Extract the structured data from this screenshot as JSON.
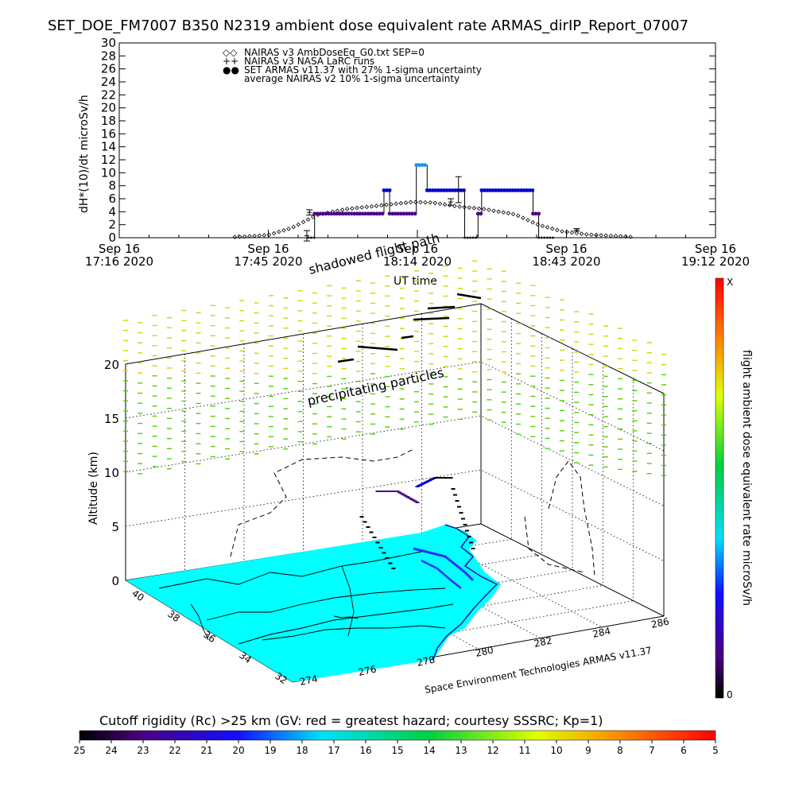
{
  "title": "SET_DOE_FM7007   B350    N2319  ambient dose equivalent rate ARMAS_dirIP_Report_07007",
  "chart_data": [
    {
      "type": "scatter",
      "ylabel": "dH*(10)/dt microSv/h",
      "xlabel": "UT time",
      "ylim": [
        0,
        30
      ],
      "yticks": [
        "0",
        "2",
        "4",
        "6",
        "8",
        "10",
        "12",
        "14",
        "16",
        "18",
        "20",
        "22",
        "24",
        "26",
        "28",
        "30"
      ],
      "xticks": [
        {
          "top": "Sep 16",
          "bottom": "17:16 2020"
        },
        {
          "top": "Sep 16",
          "bottom": "17:45 2020"
        },
        {
          "top": "Sep 16",
          "bottom": "18:14 2020"
        },
        {
          "top": "Sep 16",
          "bottom": "18:43 2020"
        },
        {
          "top": "Sep 16",
          "bottom": "19:12 2020"
        }
      ],
      "legend": [
        {
          "symbol": "◇◇",
          "text": "NAIRAS v3 AmbDoseEq_G0.txt SEP=0"
        },
        {
          "symbol": "++",
          "text": "NAIRAS v3 NASA LaRC runs"
        },
        {
          "symbol": "●●",
          "text": "SET ARMAS v11.37 with 27% 1-sigma uncertainty"
        },
        {
          "symbol": "",
          "text": "average NAIRAS v2 10% 1-sigma uncertainty"
        }
      ],
      "armas_segments": [
        {
          "t0": 36.8,
          "t1": 38.0,
          "v": 0.0
        },
        {
          "t0": 38.0,
          "t1": 51.5,
          "v": 3.7
        },
        {
          "t0": 51.5,
          "t1": 52.6,
          "v": 7.3
        },
        {
          "t0": 52.6,
          "t1": 57.8,
          "v": 3.7
        },
        {
          "t0": 57.8,
          "t1": 59.9,
          "v": 11.2
        },
        {
          "t0": 59.9,
          "t1": 67.2,
          "v": 7.3
        },
        {
          "t0": 67.2,
          "t1": 69.8,
          "v": 0.0
        },
        {
          "t0": 69.8,
          "t1": 70.5,
          "v": 3.7
        },
        {
          "t0": 70.5,
          "t1": 80.5,
          "v": 7.3
        },
        {
          "t0": 80.5,
          "t1": 81.6,
          "v": 3.7
        },
        {
          "t0": 81.6,
          "t1": 84.5,
          "v": 0.0
        }
      ],
      "nairas_profile": [
        {
          "t": 22.5,
          "v": 0.1
        },
        {
          "t": 29.0,
          "v": 0.4
        },
        {
          "t": 33.5,
          "v": 1.5
        },
        {
          "t": 38.5,
          "v": 3.5
        },
        {
          "t": 44.0,
          "v": 4.4
        },
        {
          "t": 50.0,
          "v": 4.9
        },
        {
          "t": 57.0,
          "v": 5.5
        },
        {
          "t": 61.0,
          "v": 5.4
        },
        {
          "t": 66.0,
          "v": 4.8
        },
        {
          "t": 71.0,
          "v": 4.4
        },
        {
          "t": 77.0,
          "v": 3.6
        },
        {
          "t": 81.5,
          "v": 2.0
        },
        {
          "t": 86.0,
          "v": 1.0
        },
        {
          "t": 91.0,
          "v": 0.5
        },
        {
          "t": 100.0,
          "v": 0.1
        }
      ],
      "larc_points": [
        {
          "t": 36.5,
          "v": 0.3,
          "err": 0.8
        },
        {
          "t": 37.0,
          "v": 3.9,
          "err": 0.4
        },
        {
          "t": 64.5,
          "v": 5.5,
          "err": 0.5
        },
        {
          "t": 66.0,
          "v": 7.4,
          "err": 2.0
        },
        {
          "t": 89.0,
          "v": 1.2,
          "err": 0.2
        }
      ],
      "xlim_min": [
        0,
        116
      ]
    },
    {
      "type": "scatter",
      "subtype": "3d-flight-track",
      "zlabel": "Altitude (km)",
      "zlim": [
        0,
        20
      ],
      "zticks": [
        "0",
        "5",
        "10",
        "15",
        "20"
      ],
      "lat_ticks": [
        "40",
        "38",
        "36",
        "34",
        "32"
      ],
      "lon_ticks": [
        "274",
        "276",
        "278",
        "280",
        "282",
        "284",
        "286"
      ],
      "annotations": [
        "shadowed flight path",
        "precipitating particles",
        "Space Environment Technologies ARMAS v11.37"
      ],
      "colorbar": {
        "label": "flight ambient dose equivalent rate microSv/h",
        "max_label": "X",
        "min_label": "0"
      }
    },
    {
      "type": "heatmap",
      "subtype": "colorbar",
      "label": "Cutoff rigidity (Rc) >25 km (GV: red = greatest hazard; courtesy SSSRC; Kp=1)",
      "ticks": [
        "25",
        "24",
        "23",
        "22",
        "21",
        "20",
        "19",
        "18",
        "17",
        "16",
        "15",
        "14",
        "13",
        "12",
        "11",
        "10",
        "9",
        "8",
        "7",
        "6",
        "5"
      ]
    }
  ],
  "colors": {
    "ocean": "#00ffff",
    "armas_low": "#4b0082",
    "armas_mid": "#0000cd",
    "armas_high": "#1e90ff",
    "particles_high": "#c8d800",
    "particles_low": "#50d000"
  }
}
